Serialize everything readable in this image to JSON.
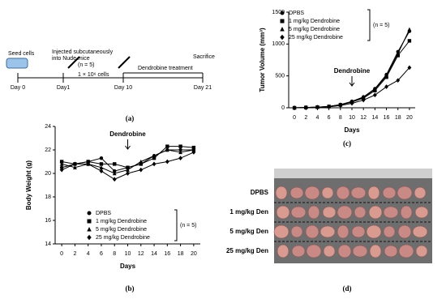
{
  "timeline": {
    "seed": "Seed cells",
    "day0": "Day 0",
    "inject1": "Injected subcutaneously",
    "inject2": "into Nude mice",
    "inject_n": "(n = 5)",
    "day1": "Day1",
    "cells": "1 × 10⁶ cells",
    "treatment": "Dendrobine  treatment",
    "day10": "Day 10",
    "sacrifice": "Sacrifice",
    "day21": "Day 21"
  },
  "chart_data": [
    {
      "type": "line",
      "ylabel": "Tumor Volume (mm³)",
      "xlabel": "Days",
      "x": [
        0,
        2,
        4,
        6,
        8,
        10,
        12,
        14,
        16,
        18,
        20
      ],
      "xlim": [
        -1,
        21
      ],
      "xticks": [
        0,
        2,
        4,
        6,
        8,
        10,
        12,
        14,
        16,
        18,
        20
      ],
      "ylim": [
        0,
        1500
      ],
      "yticks": [
        0,
        500,
        1000,
        1500
      ],
      "legend": "upper left",
      "legend_note": "(n = 5)",
      "annotation": {
        "text": "Dendrobine",
        "x": 10
      },
      "series": [
        {
          "name": "DPBS",
          "color": "#000000",
          "marker": "circle",
          "values": [
            0,
            5,
            10,
            20,
            50,
            100,
            170,
            300,
            520,
            880,
            1200
          ]
        },
        {
          "name": "1 mg/kg Dendrobine",
          "color": "#000000",
          "marker": "square",
          "values": [
            0,
            5,
            10,
            20,
            45,
            90,
            150,
            270,
            480,
            820,
            1050
          ]
        },
        {
          "name": "5 mg/kg Dendrobine",
          "color": "#000000",
          "marker": "triangle",
          "values": [
            0,
            5,
            10,
            20,
            50,
            95,
            160,
            290,
            500,
            850,
            1230
          ]
        },
        {
          "name": "25 mg/kg Dendrobine",
          "color": "#000000",
          "marker": "diamond",
          "values": [
            0,
            5,
            10,
            15,
            35,
            70,
            120,
            200,
            330,
            430,
            630
          ]
        }
      ]
    },
    {
      "type": "line",
      "ylabel": "Body Weight (g)",
      "xlabel": "Days",
      "x": [
        0,
        2,
        4,
        6,
        8,
        10,
        12,
        14,
        16,
        18,
        20
      ],
      "xlim": [
        -1,
        21
      ],
      "xticks": [
        0,
        2,
        4,
        6,
        8,
        10,
        12,
        14,
        16,
        18,
        20
      ],
      "ylim": [
        14,
        24
      ],
      "yticks": [
        14,
        16,
        18,
        20,
        22,
        24
      ],
      "legend": "lower right",
      "legend_note": "(n = 5)",
      "annotation": {
        "text": "Dendrobine",
        "x": 10
      },
      "series": [
        {
          "name": "DPBS",
          "color": "#000000",
          "marker": "circle",
          "values": [
            20.5,
            20.8,
            21.0,
            21.3,
            20.2,
            20.5,
            20.8,
            21.5,
            22.0,
            22.0,
            22.0
          ]
        },
        {
          "name": "1 mg/kg Dendrobine",
          "color": "#000000",
          "marker": "square",
          "values": [
            21.0,
            20.8,
            21.0,
            20.8,
            20.8,
            20.5,
            20.8,
            21.3,
            22.3,
            22.3,
            22.2
          ]
        },
        {
          "name": "5 mg/kg Dendrobine",
          "color": "#000000",
          "marker": "triangle",
          "values": [
            20.8,
            20.5,
            20.8,
            20.5,
            20.0,
            20.3,
            21.0,
            21.5,
            22.0,
            21.8,
            22.0
          ]
        },
        {
          "name": "25 mg/kg Dendrobine",
          "color": "#000000",
          "marker": "diamond",
          "values": [
            20.3,
            20.8,
            20.8,
            20.2,
            19.5,
            20.0,
            20.3,
            20.8,
            21.0,
            21.3,
            21.8
          ]
        }
      ]
    }
  ],
  "photo": {
    "rows": [
      "DPBS",
      "1 mg/kg Den",
      "5 mg/kg Den",
      "25 mg/kg Den"
    ]
  },
  "panel_labels": [
    "(a)",
    "(b)",
    "(c)",
    "(d)"
  ]
}
